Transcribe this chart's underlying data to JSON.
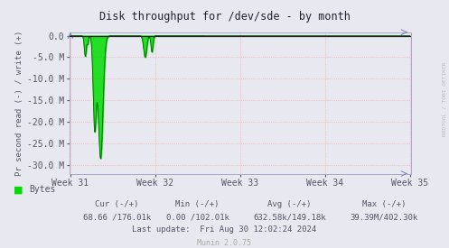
{
  "title": "Disk throughput for /dev/sde - by month",
  "ylabel": "Pr second read (-) / write (+)",
  "background_color": "#e8e8f0",
  "plot_bg_color": "#e8e8f0",
  "grid_color_h": "#ff9999",
  "grid_color_v": "#ff9999",
  "line_color": "#00dd00",
  "line_color_dark": "#006600",
  "top_line_color": "#222222",
  "border_color": "#aaaacc",
  "ylim_min": -32000000,
  "ylim_max": 800000,
  "yticks": [
    0,
    -5000000,
    -10000000,
    -15000000,
    -20000000,
    -25000000,
    -30000000
  ],
  "xtick_labels": [
    "Week 31",
    "Week 32",
    "Week 33",
    "Week 34",
    "Week 35"
  ],
  "watermark": "RRDTOOL / TOBI OETIKER",
  "munin_version": "Munin 2.0.75",
  "legend_label": "Bytes",
  "text_color": "#555566",
  "footer_cur_label": "Cur (-/+)",
  "footer_min_label": "Min (-/+)",
  "footer_avg_label": "Avg (-/+)",
  "footer_max_label": "Max (-/+)",
  "footer_cur_val": "68.66 /176.01k",
  "footer_min_val": "0.00 /102.01k",
  "footer_avg_val": "632.58k/149.18k",
  "footer_max_val": "39.39M/402.30k",
  "footer_lastupdate": "Last update:  Fri Aug 30 12:02:24 2024"
}
